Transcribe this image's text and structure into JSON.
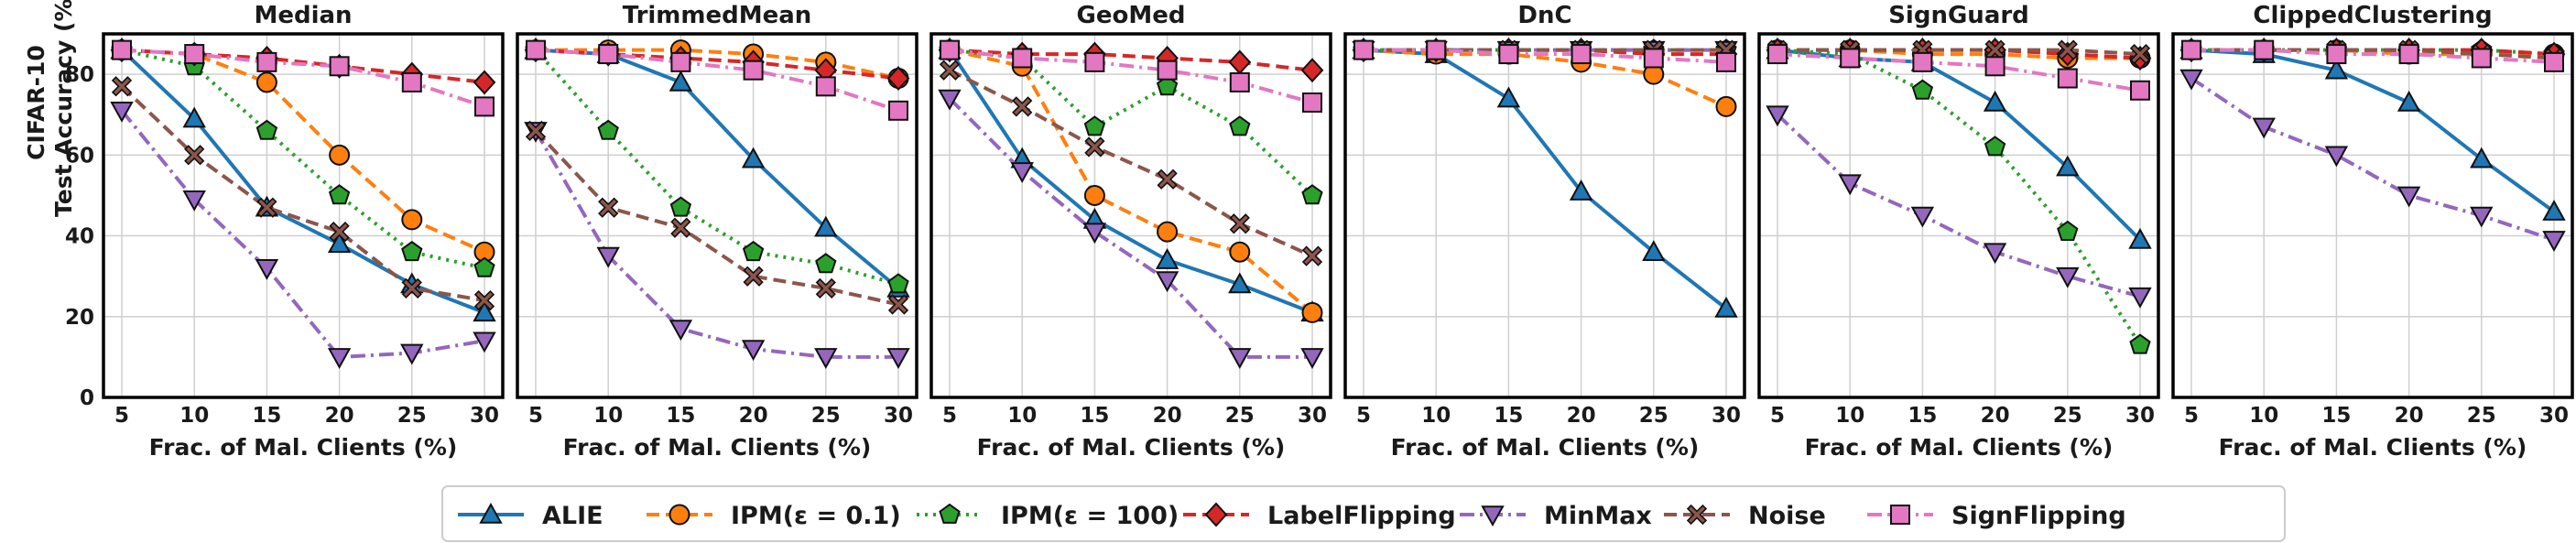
{
  "chart_data": {
    "type": "line",
    "ylabel_lines": [
      "CIFAR-10",
      "Test Accuracy (%)"
    ],
    "xlabel": "Frac. of Mal. Clients (%)",
    "x": [
      5,
      10,
      15,
      20,
      25,
      30
    ],
    "xticks": [
      "5",
      "10",
      "15",
      "20",
      "25",
      "30"
    ],
    "ylim": [
      0,
      90
    ],
    "yticks": [
      "0",
      "20",
      "40",
      "60",
      "80"
    ],
    "grid": true,
    "legend_position": "bottom-center",
    "series_style": [
      {
        "name": "ALIE",
        "color": "#1f77b4",
        "dash": "solid",
        "marker": "triangle-up"
      },
      {
        "name": "IPM(ε = 0.1)",
        "color": "#ff7f0e",
        "dash": "dashed",
        "marker": "circle"
      },
      {
        "name": "IPM(ε = 100)",
        "color": "#2ca02c",
        "dash": "dotted",
        "marker": "pentagon"
      },
      {
        "name": "LabelFlipping",
        "color": "#d62728",
        "dash": "dashed",
        "marker": "diamond"
      },
      {
        "name": "MinMax",
        "color": "#9467bd",
        "dash": "dashdot",
        "marker": "triangle-down"
      },
      {
        "name": "Noise",
        "color": "#8c564b",
        "dash": "dashed",
        "marker": "x"
      },
      {
        "name": "SignFlipping",
        "color": "#e377c2",
        "dash": "dashdot",
        "marker": "square"
      }
    ],
    "panels": [
      {
        "title": "Median",
        "series": [
          {
            "name": "ALIE",
            "values": [
              86,
              69,
              47,
              38,
              28,
              21
            ]
          },
          {
            "name": "IPM(ε = 0.1)",
            "values": [
              86,
              85,
              78,
              60,
              44,
              36
            ]
          },
          {
            "name": "IPM(ε = 100)",
            "values": [
              86,
              82,
              66,
              50,
              36,
              32
            ]
          },
          {
            "name": "LabelFlipping",
            "values": [
              86,
              85,
              84,
              82,
              80,
              78
            ]
          },
          {
            "name": "MinMax",
            "values": [
              71,
              49,
              32,
              10,
              11,
              14
            ]
          },
          {
            "name": "Noise",
            "values": [
              77,
              60,
              47,
              41,
              27,
              24
            ]
          },
          {
            "name": "SignFlipping",
            "values": [
              86,
              85,
              83,
              82,
              78,
              72
            ]
          }
        ]
      },
      {
        "title": "TrimmedMean",
        "series": [
          {
            "name": "ALIE",
            "values": [
              86,
              85,
              78,
              59,
              42,
              27
            ]
          },
          {
            "name": "IPM(ε = 0.1)",
            "values": [
              86,
              86,
              86,
              85,
              83,
              79
            ]
          },
          {
            "name": "IPM(ε = 100)",
            "values": [
              86,
              66,
              47,
              36,
              33,
              28
            ]
          },
          {
            "name": "LabelFlipping",
            "values": [
              86,
              85,
              84,
              83,
              81,
              79
            ]
          },
          {
            "name": "MinMax",
            "values": [
              66,
              35,
              17,
              12,
              10,
              10
            ]
          },
          {
            "name": "Noise",
            "values": [
              66,
              47,
              42,
              30,
              27,
              23
            ]
          },
          {
            "name": "SignFlipping",
            "values": [
              86,
              85,
              83,
              81,
              77,
              71
            ]
          }
        ]
      },
      {
        "title": "GeoMed",
        "series": [
          {
            "name": "ALIE",
            "values": [
              86,
              59,
              44,
              34,
              28,
              21
            ]
          },
          {
            "name": "IPM(ε = 0.1)",
            "values": [
              86,
              82,
              50,
              41,
              36,
              21
            ]
          },
          {
            "name": "IPM(ε = 100)",
            "values": [
              86,
              84,
              67,
              77,
              67,
              50
            ]
          },
          {
            "name": "LabelFlipping",
            "values": [
              86,
              85,
              85,
              84,
              83,
              81
            ]
          },
          {
            "name": "MinMax",
            "values": [
              74,
              56,
              41,
              29,
              10,
              10
            ]
          },
          {
            "name": "Noise",
            "values": [
              81,
              72,
              62,
              54,
              43,
              35
            ]
          },
          {
            "name": "SignFlipping",
            "values": [
              86,
              84,
              83,
              81,
              78,
              73
            ]
          }
        ]
      },
      {
        "title": "DnC",
        "series": [
          {
            "name": "ALIE",
            "values": [
              86,
              85,
              74,
              51,
              36,
              22
            ]
          },
          {
            "name": "IPM(ε = 0.1)",
            "values": [
              86,
              85,
              85,
              83,
              80,
              72
            ]
          },
          {
            "name": "IPM(ε = 100)",
            "values": [
              86,
              86,
              86,
              86,
              86,
              86
            ]
          },
          {
            "name": "LabelFlipping",
            "values": [
              86,
              86,
              86,
              86,
              85,
              85
            ]
          },
          {
            "name": "MinMax",
            "values": [
              86,
              86,
              86,
              86,
              86,
              86
            ]
          },
          {
            "name": "Noise",
            "values": [
              86,
              86,
              86,
              86,
              86,
              86
            ]
          },
          {
            "name": "SignFlipping",
            "values": [
              86,
              86,
              85,
              85,
              84,
              83
            ]
          }
        ]
      },
      {
        "title": "SignGuard",
        "series": [
          {
            "name": "ALIE",
            "values": [
              86,
              84,
              83,
              73,
              57,
              39
            ]
          },
          {
            "name": "IPM(ε = 0.1)",
            "values": [
              86,
              86,
              85,
              85,
              84,
              84
            ]
          },
          {
            "name": "IPM(ε = 100)",
            "values": [
              86,
              85,
              76,
              62,
              41,
              13
            ]
          },
          {
            "name": "LabelFlipping",
            "values": [
              86,
              86,
              86,
              86,
              85,
              84
            ]
          },
          {
            "name": "MinMax",
            "values": [
              70,
              53,
              45,
              36,
              30,
              25
            ]
          },
          {
            "name": "Noise",
            "values": [
              86,
              86,
              86,
              86,
              86,
              85
            ]
          },
          {
            "name": "SignFlipping",
            "values": [
              85,
              84,
              83,
              82,
              79,
              76
            ]
          }
        ]
      },
      {
        "title": "ClippedClustering",
        "series": [
          {
            "name": "ALIE",
            "values": [
              86,
              85,
              81,
              73,
              59,
              46
            ]
          },
          {
            "name": "IPM(ε = 0.1)",
            "values": [
              86,
              86,
              86,
              85,
              85,
              85
            ]
          },
          {
            "name": "IPM(ε = 100)",
            "values": [
              86,
              86,
              86,
              86,
              86,
              85
            ]
          },
          {
            "name": "LabelFlipping",
            "values": [
              86,
              86,
              86,
              86,
              86,
              85
            ]
          },
          {
            "name": "MinMax",
            "values": [
              79,
              67,
              60,
              50,
              45,
              39
            ]
          },
          {
            "name": "Noise",
            "values": [
              86,
              86,
              86,
              86,
              85,
              84
            ]
          },
          {
            "name": "SignFlipping",
            "values": [
              86,
              86,
              85,
              85,
              84,
              83
            ]
          }
        ]
      }
    ]
  }
}
